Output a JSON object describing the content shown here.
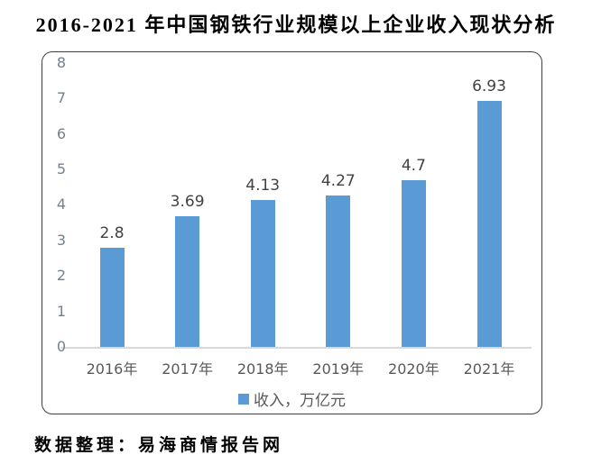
{
  "title": "2016-2021 年中国钢铁行业规模以上企业收入现状分析",
  "source_note": "数据整理：易海商情报告网",
  "chart_data": {
    "type": "bar",
    "title": "2016-2021 年中国钢铁行业规模以上企业收入现状分析",
    "categories": [
      "2016年",
      "2017年",
      "2018年",
      "2019年",
      "2020年",
      "2021年"
    ],
    "values": [
      2.8,
      3.69,
      4.13,
      4.27,
      4.7,
      6.93
    ],
    "data_labels": [
      "2.8",
      "3.69",
      "4.13",
      "4.27",
      "4.7",
      "6.93"
    ],
    "series_name": "收入，万亿元",
    "legend": [
      {
        "label": "收入，万亿元",
        "color": "#5B9BD5"
      }
    ],
    "xlabel": "",
    "ylabel": "",
    "ylim": [
      0,
      8
    ],
    "yticks": [
      0,
      1,
      2,
      3,
      4,
      5,
      6,
      7,
      8
    ],
    "grid": false,
    "legend_position": "bottom",
    "colors": {
      "bar": "#5B9BD5",
      "axis_line": "#d9d9d9",
      "ytick_text": "#72808f",
      "data_label_text": "#3f4345",
      "category_text": "#595959"
    }
  }
}
